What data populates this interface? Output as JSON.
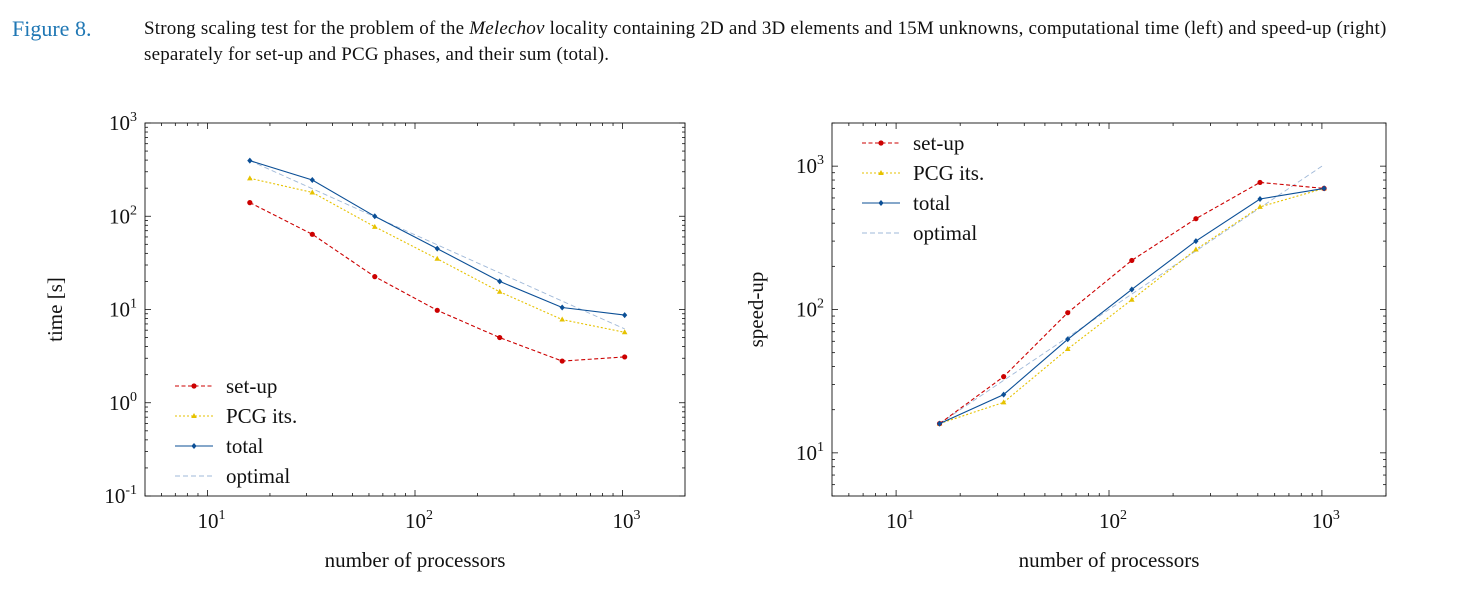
{
  "caption": {
    "label": "Figure 8.",
    "text_before": "Strong scaling test for the problem of the ",
    "italic": "Melechov",
    "text_after": " locality containing 2D and 3D elements and 15M unknowns, computational time (left) and speed-up (right) separately for set-up and PCG phases, and their sum (total)."
  },
  "colors": {
    "setup": "#cc0000",
    "pcg": "#e6c200",
    "total": "#0b4f96",
    "optimal": "#9fb8d8"
  },
  "chart_data": [
    {
      "type": "line",
      "xscale": "log",
      "yscale": "log",
      "xlabel": "number of processors",
      "ylabel": "time [s]",
      "xlim": [
        5,
        2000
      ],
      "ylim": [
        0.1,
        1000
      ],
      "x_ticks": [
        {
          "value": 10,
          "base": "10",
          "exp": "1"
        },
        {
          "value": 100,
          "base": "10",
          "exp": "2"
        },
        {
          "value": 1000,
          "base": "10",
          "exp": "3"
        }
      ],
      "y_ticks": [
        {
          "value": 0.1,
          "base": "10",
          "exp": "-1"
        },
        {
          "value": 1,
          "base": "10",
          "exp": "0"
        },
        {
          "value": 10,
          "base": "10",
          "exp": "1"
        },
        {
          "value": 100,
          "base": "10",
          "exp": "2"
        },
        {
          "value": 1000,
          "base": "10",
          "exp": "3"
        }
      ],
      "legend_position": "bottom-left",
      "x": [
        16,
        32,
        64,
        128,
        256,
        512,
        1024
      ],
      "series": [
        {
          "name": "set-up",
          "key": "setup",
          "values": [
            140,
            64,
            22.5,
            9.8,
            5.0,
            2.8,
            3.1
          ]
        },
        {
          "name": "PCG its.",
          "key": "pcg",
          "values": [
            255,
            180,
            77,
            35,
            15.5,
            7.8,
            5.7
          ]
        },
        {
          "name": "total",
          "key": "total",
          "values": [
            395,
            245,
            100,
            45,
            20,
            10.5,
            8.7
          ]
        },
        {
          "name": "optimal",
          "key": "optimal",
          "values": [
            395,
            197.5,
            98.75,
            49.4,
            24.7,
            12.3,
            6.2
          ]
        }
      ]
    },
    {
      "type": "line",
      "xscale": "log",
      "yscale": "log",
      "xlabel": "number of processors",
      "ylabel": "speed-up",
      "xlim": [
        5,
        2000
      ],
      "ylim": [
        5,
        2000
      ],
      "x_ticks": [
        {
          "value": 10,
          "base": "10",
          "exp": "1"
        },
        {
          "value": 100,
          "base": "10",
          "exp": "2"
        },
        {
          "value": 1000,
          "base": "10",
          "exp": "3"
        }
      ],
      "y_ticks": [
        {
          "value": 10,
          "base": "10",
          "exp": "1"
        },
        {
          "value": 100,
          "base": "10",
          "exp": "2"
        },
        {
          "value": 1000,
          "base": "10",
          "exp": "3"
        }
      ],
      "legend_position": "top-left",
      "x": [
        16,
        32,
        64,
        128,
        256,
        512,
        1024
      ],
      "series": [
        {
          "name": "set-up",
          "key": "setup",
          "values": [
            16,
            34,
            95,
            220,
            430,
            770,
            700
          ]
        },
        {
          "name": "PCG its.",
          "key": "pcg",
          "values": [
            16,
            22.5,
            53,
            117,
            262,
            520,
            700
          ]
        },
        {
          "name": "total",
          "key": "total",
          "values": [
            16,
            25.5,
            62,
            138,
            300,
            590,
            700
          ]
        },
        {
          "name": "optimal",
          "key": "optimal",
          "values": [
            16,
            32,
            64,
            128,
            256,
            512,
            1024
          ]
        }
      ]
    }
  ]
}
